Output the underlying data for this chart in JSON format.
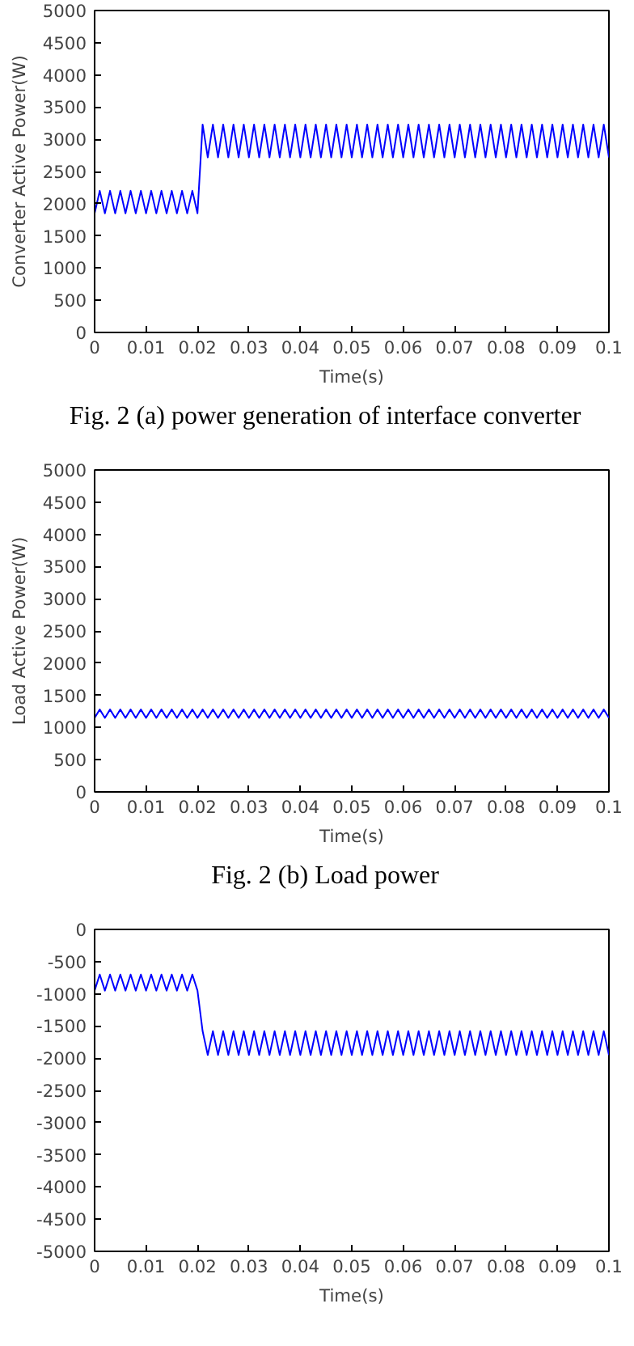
{
  "chart_data": [
    {
      "type": "line",
      "xlabel": "Time(s)",
      "ylabel": "Converter Active Power(W)",
      "annotations": [
        "Fig. 2 (a) power generation of interface converter"
      ],
      "x": [
        0,
        0.001,
        0.002,
        0.003,
        0.004,
        0.005,
        0.006,
        0.007,
        0.008,
        0.009,
        0.01,
        0.011,
        0.012,
        0.013,
        0.014,
        0.015,
        0.016,
        0.017,
        0.018,
        0.019,
        0.02,
        0.021,
        0.022,
        0.023,
        0.024,
        0.025,
        0.026,
        0.027,
        0.028,
        0.029,
        0.03,
        0.031,
        0.032,
        0.033,
        0.034,
        0.035,
        0.036,
        0.037,
        0.038,
        0.039,
        0.04,
        0.041,
        0.042,
        0.043,
        0.044,
        0.045,
        0.046,
        0.047,
        0.048,
        0.049,
        0.05,
        0.051,
        0.052,
        0.053,
        0.054,
        0.055,
        0.056,
        0.057,
        0.058,
        0.059,
        0.06,
        0.061,
        0.062,
        0.063,
        0.064,
        0.065,
        0.066,
        0.067,
        0.068,
        0.069,
        0.07,
        0.071,
        0.072,
        0.073,
        0.074,
        0.075,
        0.076,
        0.077,
        0.078,
        0.079,
        0.08,
        0.081,
        0.082,
        0.083,
        0.084,
        0.085,
        0.086,
        0.087,
        0.088,
        0.089,
        0.09,
        0.091,
        0.092,
        0.093,
        0.094,
        0.095,
        0.096,
        0.097,
        0.098,
        0.099,
        0.1
      ],
      "xlim": [
        0,
        0.1
      ],
      "xticks": [
        0,
        0.01,
        0.02,
        0.03,
        0.04,
        0.05,
        0.06,
        0.07,
        0.08,
        0.09,
        0.1
      ],
      "ylim": [
        0,
        5000
      ],
      "yticks": [
        0,
        500,
        1000,
        1500,
        2000,
        2500,
        3000,
        3500,
        4000,
        4500,
        5000
      ],
      "grid": false,
      "series": [
        {
          "color": "#0000ff",
          "values": [
            1850,
            2200,
            1850,
            2200,
            1850,
            2200,
            1850,
            2200,
            1850,
            2200,
            1850,
            2200,
            1850,
            2200,
            1850,
            2200,
            1850,
            2200,
            1850,
            2200,
            1850,
            3230,
            2720,
            3230,
            2720,
            3230,
            2720,
            3230,
            2720,
            3230,
            2720,
            3230,
            2720,
            3230,
            2720,
            3230,
            2720,
            3230,
            2720,
            3230,
            2720,
            3230,
            2720,
            3230,
            2720,
            3230,
            2720,
            3230,
            2720,
            3230,
            2720,
            3230,
            2720,
            3230,
            2720,
            3230,
            2720,
            3230,
            2720,
            3230,
            2720,
            3230,
            2720,
            3230,
            2720,
            3230,
            2720,
            3230,
            2720,
            3230,
            2720,
            3230,
            2720,
            3230,
            2720,
            3230,
            2720,
            3230,
            2720,
            3230,
            2720,
            3230,
            2720,
            3230,
            2720,
            3230,
            2720,
            3230,
            2720,
            3230,
            2720,
            3230,
            2720,
            3230,
            2720,
            3230,
            2720,
            3230,
            2720,
            3230,
            2720
          ]
        }
      ]
    },
    {
      "type": "line",
      "xlabel": "Time(s)",
      "ylabel": "Load Active Power(W)",
      "annotations": [
        "Fig. 2 (b) Load power"
      ],
      "x": [
        0,
        0.001,
        0.002,
        0.003,
        0.004,
        0.005,
        0.006,
        0.007,
        0.008,
        0.009,
        0.01,
        0.011,
        0.012,
        0.013,
        0.014,
        0.015,
        0.016,
        0.017,
        0.018,
        0.019,
        0.02,
        0.021,
        0.022,
        0.023,
        0.024,
        0.025,
        0.026,
        0.027,
        0.028,
        0.029,
        0.03,
        0.031,
        0.032,
        0.033,
        0.034,
        0.035,
        0.036,
        0.037,
        0.038,
        0.039,
        0.04,
        0.041,
        0.042,
        0.043,
        0.044,
        0.045,
        0.046,
        0.047,
        0.048,
        0.049,
        0.05,
        0.051,
        0.052,
        0.053,
        0.054,
        0.055,
        0.056,
        0.057,
        0.058,
        0.059,
        0.06,
        0.061,
        0.062,
        0.063,
        0.064,
        0.065,
        0.066,
        0.067,
        0.068,
        0.069,
        0.07,
        0.071,
        0.072,
        0.073,
        0.074,
        0.075,
        0.076,
        0.077,
        0.078,
        0.079,
        0.08,
        0.081,
        0.082,
        0.083,
        0.084,
        0.085,
        0.086,
        0.087,
        0.088,
        0.089,
        0.09,
        0.091,
        0.092,
        0.093,
        0.094,
        0.095,
        0.096,
        0.097,
        0.098,
        0.099,
        0.1
      ],
      "xlim": [
        0,
        0.1
      ],
      "xticks": [
        0,
        0.01,
        0.02,
        0.03,
        0.04,
        0.05,
        0.06,
        0.07,
        0.08,
        0.09,
        0.1
      ],
      "ylim": [
        0,
        5000
      ],
      "yticks": [
        0,
        500,
        1000,
        1500,
        2000,
        2500,
        3000,
        3500,
        4000,
        4500,
        5000
      ],
      "grid": false,
      "series": [
        {
          "color": "#0000ff",
          "values": [
            1150,
            1280,
            1150,
            1280,
            1150,
            1280,
            1150,
            1280,
            1150,
            1280,
            1150,
            1280,
            1150,
            1280,
            1150,
            1280,
            1150,
            1280,
            1150,
            1280,
            1150,
            1280,
            1150,
            1280,
            1150,
            1280,
            1150,
            1280,
            1150,
            1280,
            1150,
            1280,
            1150,
            1280,
            1150,
            1280,
            1150,
            1280,
            1150,
            1280,
            1150,
            1280,
            1150,
            1280,
            1150,
            1280,
            1150,
            1280,
            1150,
            1280,
            1150,
            1280,
            1150,
            1280,
            1150,
            1280,
            1150,
            1280,
            1150,
            1280,
            1150,
            1280,
            1150,
            1280,
            1150,
            1280,
            1150,
            1280,
            1150,
            1280,
            1150,
            1280,
            1150,
            1280,
            1150,
            1280,
            1150,
            1280,
            1150,
            1280,
            1150,
            1280,
            1150,
            1280,
            1150,
            1280,
            1150,
            1280,
            1150,
            1280,
            1150,
            1280,
            1150,
            1280,
            1150,
            1280,
            1150,
            1280,
            1150,
            1280,
            1150
          ]
        }
      ]
    },
    {
      "type": "line",
      "xlabel": "Time(s)",
      "x": [
        0,
        0.001,
        0.002,
        0.003,
        0.004,
        0.005,
        0.006,
        0.007,
        0.008,
        0.009,
        0.01,
        0.011,
        0.012,
        0.013,
        0.014,
        0.015,
        0.016,
        0.017,
        0.018,
        0.019,
        0.02,
        0.021,
        0.022,
        0.023,
        0.024,
        0.025,
        0.026,
        0.027,
        0.028,
        0.029,
        0.03,
        0.031,
        0.032,
        0.033,
        0.034,
        0.035,
        0.036,
        0.037,
        0.038,
        0.039,
        0.04,
        0.041,
        0.042,
        0.043,
        0.044,
        0.045,
        0.046,
        0.047,
        0.048,
        0.049,
        0.05,
        0.051,
        0.052,
        0.053,
        0.054,
        0.055,
        0.056,
        0.057,
        0.058,
        0.059,
        0.06,
        0.061,
        0.062,
        0.063,
        0.064,
        0.065,
        0.066,
        0.067,
        0.068,
        0.069,
        0.07,
        0.071,
        0.072,
        0.073,
        0.074,
        0.075,
        0.076,
        0.077,
        0.078,
        0.079,
        0.08,
        0.081,
        0.082,
        0.083,
        0.084,
        0.085,
        0.086,
        0.087,
        0.088,
        0.089,
        0.09,
        0.091,
        0.092,
        0.093,
        0.094,
        0.095,
        0.096,
        0.097,
        0.098,
        0.099,
        0.1
      ],
      "xlim": [
        0,
        0.1
      ],
      "xticks": [
        0,
        0.01,
        0.02,
        0.03,
        0.04,
        0.05,
        0.06,
        0.07,
        0.08,
        0.09,
        0.1
      ],
      "ylim": [
        -5000,
        0
      ],
      "yticks": [
        -5000,
        -4500,
        -4000,
        -3500,
        -3000,
        -2500,
        -2000,
        -1500,
        -1000,
        -500,
        0
      ],
      "grid": false,
      "series": [
        {
          "color": "#0000ff",
          "values": [
            -950,
            -700,
            -950,
            -700,
            -950,
            -700,
            -950,
            -700,
            -950,
            -700,
            -950,
            -700,
            -950,
            -700,
            -950,
            -700,
            -950,
            -700,
            -950,
            -700,
            -950,
            -1580,
            -1950,
            -1580,
            -1950,
            -1580,
            -1950,
            -1580,
            -1950,
            -1580,
            -1950,
            -1580,
            -1950,
            -1580,
            -1950,
            -1580,
            -1950,
            -1580,
            -1950,
            -1580,
            -1950,
            -1580,
            -1950,
            -1580,
            -1950,
            -1580,
            -1950,
            -1580,
            -1950,
            -1580,
            -1950,
            -1580,
            -1950,
            -1580,
            -1950,
            -1580,
            -1950,
            -1580,
            -1950,
            -1580,
            -1950,
            -1580,
            -1950,
            -1580,
            -1950,
            -1580,
            -1950,
            -1580,
            -1950,
            -1580,
            -1950,
            -1580,
            -1950,
            -1580,
            -1950,
            -1580,
            -1950,
            -1580,
            -1950,
            -1580,
            -1950,
            -1580,
            -1950,
            -1580,
            -1950,
            -1580,
            -1950,
            -1580,
            -1950,
            -1580,
            -1950,
            -1580,
            -1950,
            -1580,
            -1950,
            -1580,
            -1950,
            -1580,
            -1950,
            -1580,
            -1950
          ]
        }
      ]
    }
  ]
}
